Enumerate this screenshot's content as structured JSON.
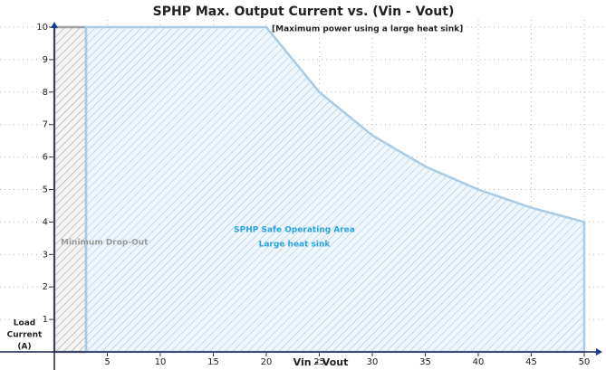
{
  "chart_data": {
    "type": "area",
    "title": "SPHP Max. Output Current vs. (Vin - Vout)",
    "xlabel": "Vin - Vout",
    "ylabel": [
      "Load",
      "Current",
      "(A)"
    ],
    "xlim": [
      0,
      50
    ],
    "ylim": [
      0,
      10
    ],
    "xticks": [
      5,
      10,
      15,
      20,
      25,
      30,
      35,
      40,
      45,
      50
    ],
    "yticks": [
      1,
      2,
      3,
      4,
      5,
      6,
      7,
      8,
      9,
      10
    ],
    "grid": true,
    "series": [
      {
        "name": "Minimum Drop-Out",
        "color": "#a0a0a0",
        "x": [
          0,
          3
        ],
        "values": [
          10,
          10
        ]
      },
      {
        "name": "SPHP Safe Operating Area",
        "color": "#a9cbe6",
        "x": [
          3,
          20,
          25,
          30,
          35,
          40,
          45,
          50
        ],
        "values": [
          10,
          10,
          8,
          6.67,
          5.71,
          5,
          4.44,
          4
        ]
      }
    ],
    "annotations": [
      "[Maximum power using a large heat sink]",
      "Large heat sink"
    ]
  }
}
